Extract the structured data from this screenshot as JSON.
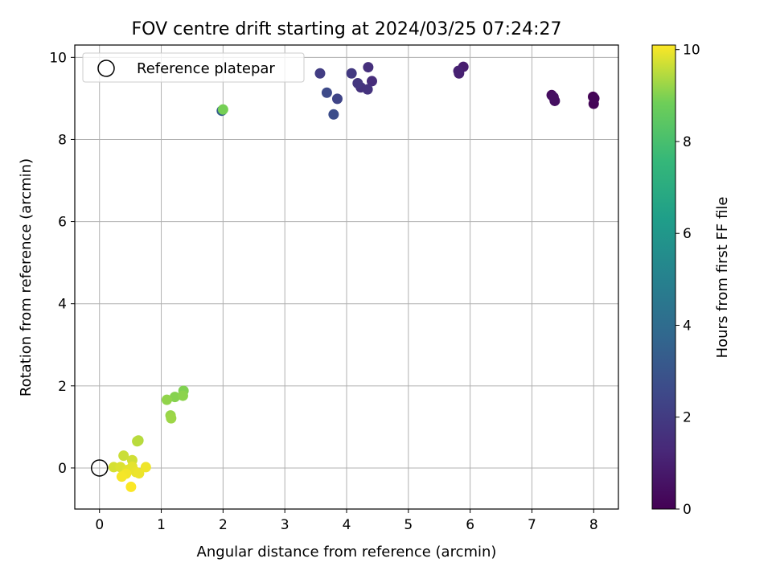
{
  "chart_data": {
    "type": "scatter",
    "title": "FOV centre drift starting at 2024/03/25 07:24:27",
    "xlabel": "Angular distance from reference (arcmin)",
    "ylabel": "Rotation from reference (arcmin)",
    "xlim": [
      -0.4,
      8.4
    ],
    "ylim": [
      -1.0,
      10.3
    ],
    "xticks": [
      0,
      1,
      2,
      3,
      4,
      5,
      6,
      7,
      8
    ],
    "yticks": [
      0,
      2,
      4,
      6,
      8,
      10
    ],
    "grid": true,
    "legend": {
      "placement": "top-left",
      "entries": [
        "Reference platepar"
      ]
    },
    "reference_point": {
      "label": "Reference platepar",
      "x": 0,
      "y": 0
    },
    "colorbar": {
      "label": "Hours from first FF file",
      "colormap": "viridis",
      "range": [
        0,
        10.1
      ],
      "ticks": [
        0,
        2,
        4,
        6,
        8,
        10
      ]
    },
    "series": [
      {
        "points": [
          {
            "x": 7.99,
            "y": 9.04,
            "t": 0.05
          },
          {
            "x": 8.0,
            "y": 8.87,
            "t": 0.1
          },
          {
            "x": 8.01,
            "y": 9.0,
            "t": 0.15
          },
          {
            "x": 7.32,
            "y": 9.08,
            "t": 0.35
          },
          {
            "x": 7.37,
            "y": 8.94,
            "t": 0.45
          },
          {
            "x": 7.35,
            "y": 9.03,
            "t": 0.5
          },
          {
            "x": 5.89,
            "y": 9.77,
            "t": 0.9
          },
          {
            "x": 5.82,
            "y": 9.61,
            "t": 1.0
          },
          {
            "x": 5.81,
            "y": 9.67,
            "t": 1.05
          },
          {
            "x": 4.41,
            "y": 9.42,
            "t": 1.45
          },
          {
            "x": 4.35,
            "y": 9.76,
            "t": 1.55
          },
          {
            "x": 4.23,
            "y": 9.27,
            "t": 1.65
          },
          {
            "x": 4.34,
            "y": 9.22,
            "t": 1.7
          },
          {
            "x": 4.18,
            "y": 9.37,
            "t": 1.8
          },
          {
            "x": 4.08,
            "y": 9.61,
            "t": 1.9
          },
          {
            "x": 3.57,
            "y": 9.61,
            "t": 2.05
          },
          {
            "x": 3.85,
            "y": 8.99,
            "t": 2.35
          },
          {
            "x": 3.68,
            "y": 9.14,
            "t": 2.55
          },
          {
            "x": 3.79,
            "y": 8.61,
            "t": 2.7
          },
          {
            "x": 1.98,
            "y": 8.7,
            "t": 3.4
          },
          {
            "x": 2.0,
            "y": 8.73,
            "t": 8.9
          },
          {
            "x": 1.36,
            "y": 1.88,
            "t": 9.0
          },
          {
            "x": 1.22,
            "y": 1.73,
            "t": 9.05
          },
          {
            "x": 1.35,
            "y": 1.76,
            "t": 9.1
          },
          {
            "x": 1.09,
            "y": 1.66,
            "t": 9.15
          },
          {
            "x": 1.15,
            "y": 1.28,
            "t": 9.2
          },
          {
            "x": 1.16,
            "y": 1.21,
            "t": 9.25
          },
          {
            "x": 0.63,
            "y": 0.67,
            "t": 9.45
          },
          {
            "x": 0.61,
            "y": 0.65,
            "t": 9.5
          },
          {
            "x": 0.39,
            "y": 0.3,
            "t": 9.65
          },
          {
            "x": 0.53,
            "y": 0.19,
            "t": 9.7
          },
          {
            "x": 0.23,
            "y": 0.02,
            "t": 9.75
          },
          {
            "x": 0.34,
            "y": 0.02,
            "t": 9.8
          },
          {
            "x": 0.45,
            "y": -0.05,
            "t": 9.85
          },
          {
            "x": 0.53,
            "y": 0.03,
            "t": 9.88
          },
          {
            "x": 0.59,
            "y": -0.1,
            "t": 9.92
          },
          {
            "x": 0.64,
            "y": -0.13,
            "t": 9.95
          },
          {
            "x": 0.75,
            "y": 0.02,
            "t": 9.98
          },
          {
            "x": 0.43,
            "y": -0.14,
            "t": 10.0
          },
          {
            "x": 0.36,
            "y": -0.21,
            "t": 10.03
          },
          {
            "x": 0.51,
            "y": -0.46,
            "t": 10.08
          }
        ]
      }
    ]
  }
}
